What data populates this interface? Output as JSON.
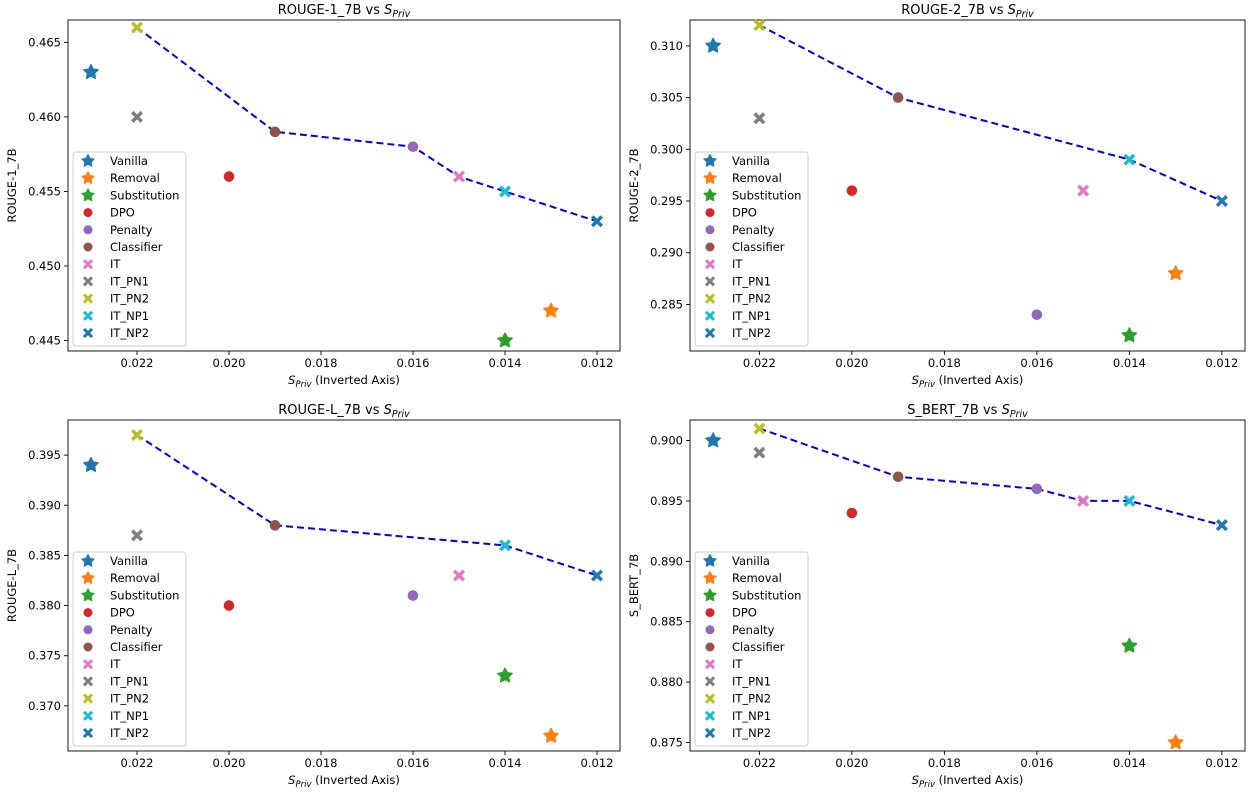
{
  "chart_data": [
    {
      "type": "scatter",
      "title": "ROUGE-1_7B vs",
      "title_sub": "Priv",
      "ylabel": "ROUGE-1_7B",
      "xlabel": "(Inverted Axis)",
      "xlabel_sub": "Priv",
      "xlim": [
        0.0235,
        0.0115
      ],
      "ylim": [
        0.4443,
        0.4665
      ],
      "xticks": [
        "0.022",
        "0.020",
        "0.018",
        "0.016",
        "0.014",
        "0.012"
      ],
      "yticks": [
        "0.445",
        "0.450",
        "0.455",
        "0.460",
        "0.465"
      ],
      "legend_position": "center-left",
      "points": [
        {
          "x": 0.023,
          "y": 0.463
        },
        {
          "x": 0.013,
          "y": 0.447
        },
        {
          "x": 0.014,
          "y": 0.445
        },
        {
          "x": 0.02,
          "y": 0.456
        },
        {
          "x": 0.016,
          "y": 0.458
        },
        {
          "x": 0.019,
          "y": 0.459
        },
        {
          "x": 0.015,
          "y": 0.456
        },
        {
          "x": 0.022,
          "y": 0.46
        },
        {
          "x": 0.022,
          "y": 0.466
        },
        {
          "x": 0.014,
          "y": 0.455
        },
        {
          "x": 0.012,
          "y": 0.453
        }
      ],
      "frontier": [
        [
          0.022,
          0.466
        ],
        [
          0.019,
          0.459
        ],
        [
          0.016,
          0.458
        ],
        [
          0.015,
          0.456
        ],
        [
          0.014,
          0.455
        ],
        [
          0.012,
          0.453
        ]
      ]
    },
    {
      "type": "scatter",
      "title": "ROUGE-2_7B vs",
      "title_sub": "Priv",
      "ylabel": "ROUGE-2_7B",
      "xlabel": "(Inverted Axis)",
      "xlabel_sub": "Priv",
      "xlim": [
        0.0235,
        0.0115
      ],
      "ylim": [
        0.2805,
        0.3125
      ],
      "xticks": [
        "0.022",
        "0.020",
        "0.018",
        "0.016",
        "0.014",
        "0.012"
      ],
      "yticks": [
        "0.285",
        "0.290",
        "0.295",
        "0.300",
        "0.305",
        "0.310"
      ],
      "legend_position": "center-left",
      "points": [
        {
          "x": 0.023,
          "y": 0.31
        },
        {
          "x": 0.013,
          "y": 0.288
        },
        {
          "x": 0.014,
          "y": 0.282
        },
        {
          "x": 0.02,
          "y": 0.296
        },
        {
          "x": 0.016,
          "y": 0.284
        },
        {
          "x": 0.019,
          "y": 0.305
        },
        {
          "x": 0.015,
          "y": 0.296
        },
        {
          "x": 0.022,
          "y": 0.303
        },
        {
          "x": 0.022,
          "y": 0.312
        },
        {
          "x": 0.014,
          "y": 0.299
        },
        {
          "x": 0.012,
          "y": 0.295
        }
      ],
      "frontier": [
        [
          0.022,
          0.312
        ],
        [
          0.019,
          0.305
        ],
        [
          0.014,
          0.299
        ],
        [
          0.012,
          0.295
        ]
      ]
    },
    {
      "type": "scatter",
      "title": "ROUGE-L_7B vs",
      "title_sub": "Priv",
      "ylabel": "ROUGE-L_7B",
      "xlabel": "(Inverted Axis)",
      "xlabel_sub": "Priv",
      "xlim": [
        0.0235,
        0.0115
      ],
      "ylim": [
        0.3655,
        0.3985
      ],
      "xticks": [
        "0.022",
        "0.020",
        "0.018",
        "0.016",
        "0.014",
        "0.012"
      ],
      "yticks": [
        "0.370",
        "0.375",
        "0.380",
        "0.385",
        "0.390",
        "0.395"
      ],
      "legend_position": "lower-left",
      "points": [
        {
          "x": 0.023,
          "y": 0.394
        },
        {
          "x": 0.013,
          "y": 0.367
        },
        {
          "x": 0.014,
          "y": 0.373
        },
        {
          "x": 0.02,
          "y": 0.38
        },
        {
          "x": 0.016,
          "y": 0.381
        },
        {
          "x": 0.019,
          "y": 0.388
        },
        {
          "x": 0.015,
          "y": 0.383
        },
        {
          "x": 0.022,
          "y": 0.387
        },
        {
          "x": 0.022,
          "y": 0.397
        },
        {
          "x": 0.014,
          "y": 0.386
        },
        {
          "x": 0.012,
          "y": 0.383
        }
      ],
      "frontier": [
        [
          0.022,
          0.397
        ],
        [
          0.019,
          0.388
        ],
        [
          0.014,
          0.386
        ],
        [
          0.012,
          0.383
        ]
      ]
    },
    {
      "type": "scatter",
      "title": "S_BERT_7B vs",
      "title_sub": "Priv",
      "ylabel": "S_BERT_7B",
      "xlabel": "(Inverted Axis)",
      "xlabel_sub": "Priv",
      "xlim": [
        0.0235,
        0.0115
      ],
      "ylim": [
        0.8743,
        0.9017
      ],
      "xticks": [
        "0.022",
        "0.020",
        "0.018",
        "0.016",
        "0.014",
        "0.012"
      ],
      "yticks": [
        "0.875",
        "0.880",
        "0.885",
        "0.890",
        "0.895",
        "0.900"
      ],
      "legend_position": "lower-left",
      "points": [
        {
          "x": 0.023,
          "y": 0.9
        },
        {
          "x": 0.013,
          "y": 0.875
        },
        {
          "x": 0.014,
          "y": 0.883
        },
        {
          "x": 0.02,
          "y": 0.894
        },
        {
          "x": 0.016,
          "y": 0.896
        },
        {
          "x": 0.019,
          "y": 0.897
        },
        {
          "x": 0.015,
          "y": 0.895
        },
        {
          "x": 0.022,
          "y": 0.899
        },
        {
          "x": 0.022,
          "y": 0.901
        },
        {
          "x": 0.014,
          "y": 0.895
        },
        {
          "x": 0.012,
          "y": 0.893
        }
      ],
      "frontier": [
        [
          0.022,
          0.901
        ],
        [
          0.019,
          0.897
        ],
        [
          0.016,
          0.896
        ],
        [
          0.015,
          0.895
        ],
        [
          0.014,
          0.895
        ],
        [
          0.012,
          0.893
        ]
      ]
    }
  ],
  "series_styles": [
    {
      "name": "Vanilla",
      "marker": "star",
      "color": "#1f77b4"
    },
    {
      "name": "Removal",
      "marker": "star",
      "color": "#ff7f0e"
    },
    {
      "name": "Substitution",
      "marker": "star",
      "color": "#2ca02c"
    },
    {
      "name": "DPO",
      "marker": "circle",
      "color": "#d62728"
    },
    {
      "name": "Penalty",
      "marker": "circle",
      "color": "#9467bd"
    },
    {
      "name": "Classifier",
      "marker": "circle",
      "color": "#8c564b"
    },
    {
      "name": "IT",
      "marker": "x",
      "color": "#e377c2"
    },
    {
      "name": "IT_PN1",
      "marker": "x",
      "color": "#7f7f7f"
    },
    {
      "name": "IT_PN2",
      "marker": "x",
      "color": "#bcbd22"
    },
    {
      "name": "IT_NP1",
      "marker": "x",
      "color": "#17becf"
    },
    {
      "name": "IT_NP2",
      "marker": "x",
      "color": "#1f77b4"
    }
  ],
  "symbols": {
    "s": "S"
  },
  "frontier_color": "#0000dd"
}
